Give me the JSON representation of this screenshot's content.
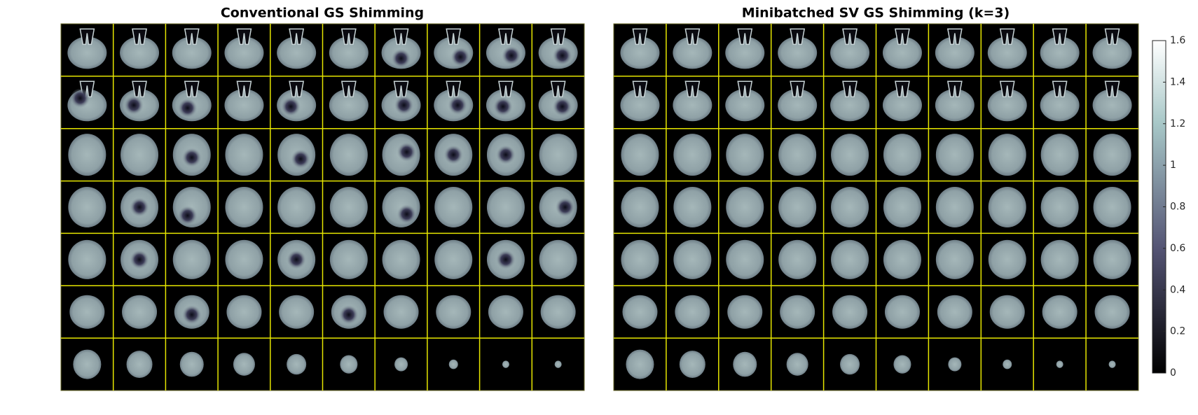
{
  "panels": [
    {
      "title": "Conventional GS Shimming"
    },
    {
      "title": "Minibatched SV GS Shimming (k=3)"
    }
  ],
  "colorbar": {
    "range": [
      0,
      1.6
    ],
    "ticks": [
      0,
      0.2,
      0.4,
      0.6,
      0.8,
      1,
      1.2,
      1.4,
      1.6
    ]
  }
}
